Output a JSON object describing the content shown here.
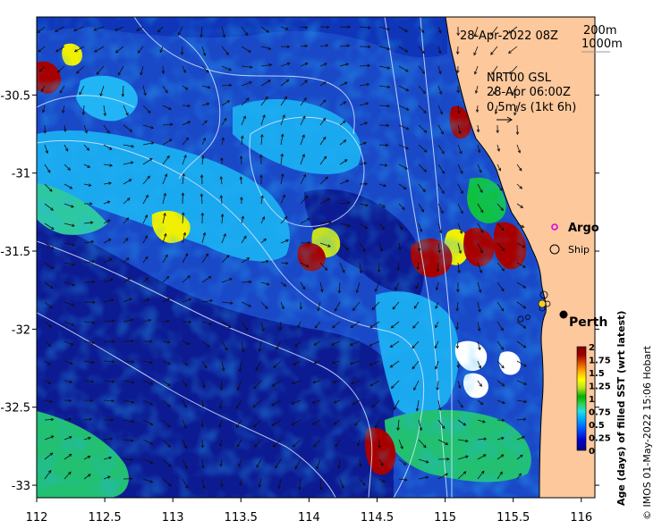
{
  "map": {
    "date_label": "28-Apr-2022 08Z",
    "contours_legend": [
      "200m",
      "1000m"
    ],
    "current_info": [
      "NRT00 GSL",
      "28-Apr 06:00Z",
      "0.5m/s (1kt 6h)"
    ],
    "legend": {
      "argo_label": "Argo",
      "ship_label": "Ship",
      "argo_color": "#e000e0"
    },
    "city": {
      "name": "Perth",
      "lon": 115.86,
      "lat": -31.95
    },
    "credit": "© IMOS 01-May-2022 15:06 Hobart",
    "colorbar": {
      "title": "Age (days) of filled SST (wrt latest)",
      "ticks": [
        "2",
        "1.75",
        "1.5",
        "1.25",
        "1",
        "0.75",
        "0.5",
        "0.25",
        "0"
      ],
      "colors": [
        "#00007f",
        "#0000d0",
        "#0050ff",
        "#00a8ff",
        "#20e0e0",
        "#30d050",
        "#00b000",
        "#b8e020",
        "#ffff00",
        "#ffb000",
        "#e05000",
        "#a00000",
        "#800000"
      ]
    },
    "x_axis": {
      "ticks": [
        "112",
        "112.5",
        "113",
        "113.5",
        "114",
        "114.5",
        "115",
        "115.5",
        "116"
      ],
      "range": [
        112,
        116.1
      ]
    },
    "y_axis": {
      "ticks": [
        "-30.5",
        "-31",
        "-31.5",
        "-32",
        "-32.5",
        "-33"
      ],
      "range": [
        -33.08,
        -30.0
      ]
    },
    "colors": {
      "land": "#fcc89c",
      "ocean_deep": "#0b1a8c",
      "ocean_mid": "#1b4cd0",
      "ocean_light": "#19aaf0",
      "missing": "#ffffff"
    }
  }
}
